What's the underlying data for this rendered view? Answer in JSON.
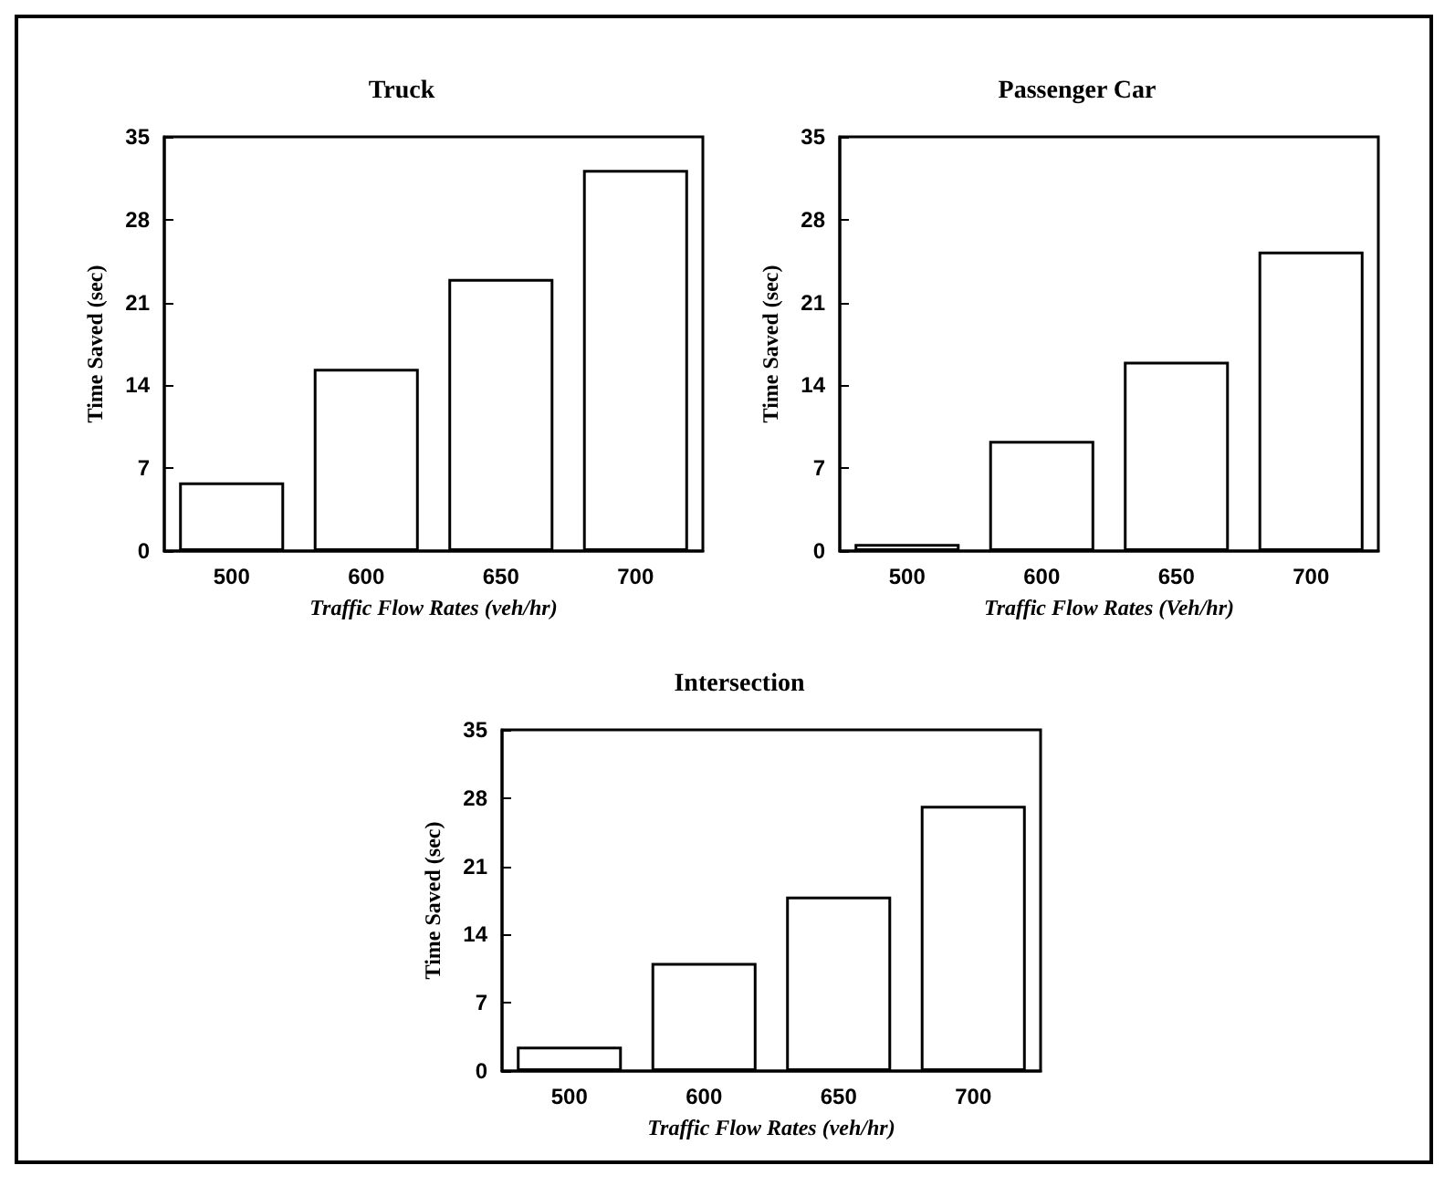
{
  "chart_data": [
    {
      "type": "bar",
      "title": "Truck",
      "xlabel": "Traffic Flow Rates (veh/hr)",
      "ylabel": "Time Saved (sec)",
      "categories": [
        "500",
        "600",
        "650",
        "700"
      ],
      "values": [
        5.8,
        15.4,
        23.0,
        32.2
      ],
      "color": "#ffffff",
      "ylim": [
        0,
        35
      ],
      "yticks": [
        0,
        7,
        14,
        21,
        28,
        35
      ],
      "grid": false
    },
    {
      "type": "bar",
      "title": "Passenger Car",
      "xlabel": "Traffic Flow Rates (Veh/hr)",
      "ylabel": "Time Saved (sec)",
      "categories": [
        "500",
        "600",
        "650",
        "700"
      ],
      "values": [
        0.6,
        9.3,
        16.0,
        25.3
      ],
      "color": "#ffffff",
      "ylim": [
        0,
        35
      ],
      "yticks": [
        0,
        7,
        14,
        21,
        28,
        35
      ],
      "grid": false
    },
    {
      "type": "bar",
      "title": "Intersection",
      "xlabel": "Traffic Flow Rates (veh/hr)",
      "ylabel": "Time Saved (sec)",
      "categories": [
        "500",
        "600",
        "650",
        "700"
      ],
      "values": [
        2.5,
        11.1,
        17.9,
        27.2
      ],
      "color": "#ffffff",
      "ylim": [
        0,
        35
      ],
      "yticks": [
        0,
        7,
        14,
        21,
        28,
        35
      ],
      "grid": false
    }
  ]
}
